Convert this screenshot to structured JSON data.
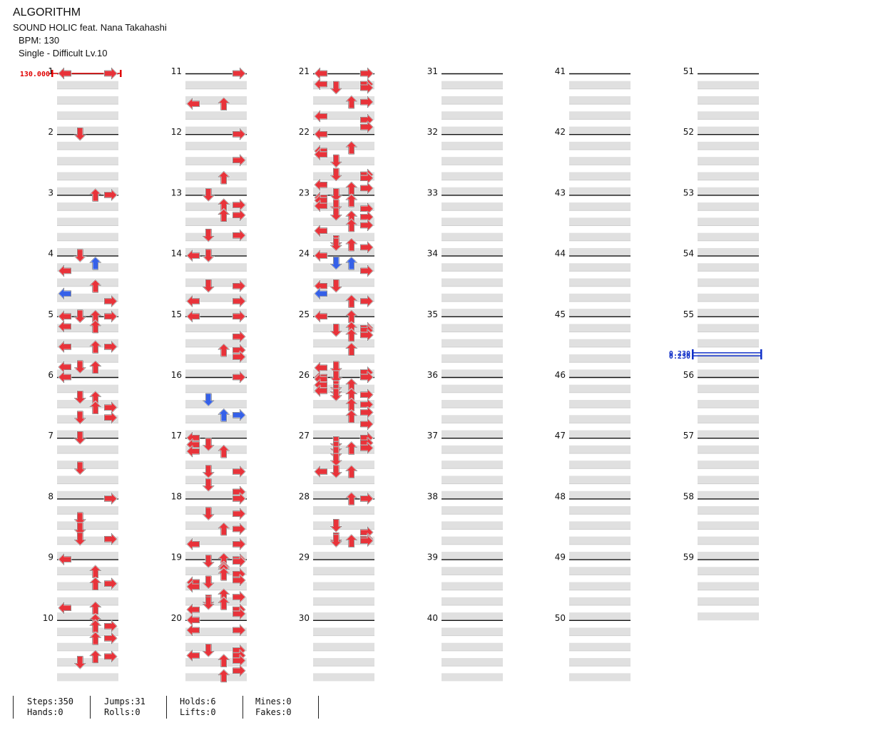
{
  "song": {
    "title": "ALGORITHM",
    "artist": "SOUND HOLIC feat. Nana Takahashi",
    "bpm_label": "BPM: 130",
    "chart_label": "Single - Difficult Lv.10"
  },
  "tempo_markers": [
    {
      "measure": 1,
      "label": "130.000",
      "kind": "bpm"
    },
    {
      "measure": 55.6,
      "label": "0.230",
      "kind": "stop"
    },
    {
      "measure": 55.65,
      "label": "0.230",
      "kind": "stop"
    }
  ],
  "measure_numbers": [
    1,
    2,
    3,
    4,
    5,
    6,
    7,
    8,
    9,
    10,
    11,
    12,
    13,
    14,
    15,
    16,
    17,
    18,
    19,
    20,
    21,
    22,
    23,
    24,
    25,
    26,
    27,
    28,
    29,
    30,
    31,
    32,
    33,
    34,
    35,
    36,
    37,
    38,
    39,
    40,
    41,
    42,
    43,
    44,
    45,
    46,
    47,
    48,
    49,
    50,
    51,
    52,
    53,
    54,
    55,
    56,
    57,
    58,
    59
  ],
  "notes": "LR|D1.5|U2UR|D;U;L;;U;L;R;|LDUR;LU;;URLR;;ULD|L;;UD;RU;DR;|D;D|R;;D;D;DR;|L;U;UR;;UL|U;UR;;UR;;;UR;D;;|R;LU|R;;;R;;U;|D;UR;UR;;DR;|LD;;DR;LR|LR;;;R;;UR;R;;|R;;;D;;UR;;|L;LD;UL;;;DR;;D;R|R;DR;UR;LR|UR;DR;;;U;U;;RU;;;R;LD;;L;;;;U;R;;D;DU;;;LR;;R;;|L;;LR;;;;DR;LR;UR;;R;U|LR;;;RL;DR;;;;UR;;;;L;R;;R;|L;;;;U;L;L;;D;;;;DR;R;;L;UR;|D;L;LU;;LD;R;;D;UR;;;UR;;L;;;;D;DU;R;;|L;UD;R;;LD;L;UR;|LU;;;;;UR;DR;;UR;;;;;;U;;;;;;;;LD;;R;|LDR;L;;;UL;D;;LD;;DRU;;;;;UR;;;;R;;U;;;;R;;;;;;|R;;;DR;;;UDR;;;D;;;;D;;;;;;;LDU;;;;;;;;;;;;;;;|UR;;;;;;;;;;;;;;;;D;;;;R;;;;DR;UDR;;;;;;;;;;",
  "stats": [
    {
      "label": "Steps:350",
      "label2": "Hands:0"
    },
    {
      "label": "Jumps:31",
      "label2": "Rolls:0"
    },
    {
      "label": "Holds:6",
      "label2": "Lifts:0"
    },
    {
      "label": "Mines:0",
      "label2": "Fakes:0"
    }
  ],
  "colors": {
    "quarter": "#e8333a",
    "eighth": "#3560e8",
    "hold": "#7fd37f",
    "band": "#e0e0e0",
    "bpm": "#e00000",
    "stop": "#1030c8"
  }
}
